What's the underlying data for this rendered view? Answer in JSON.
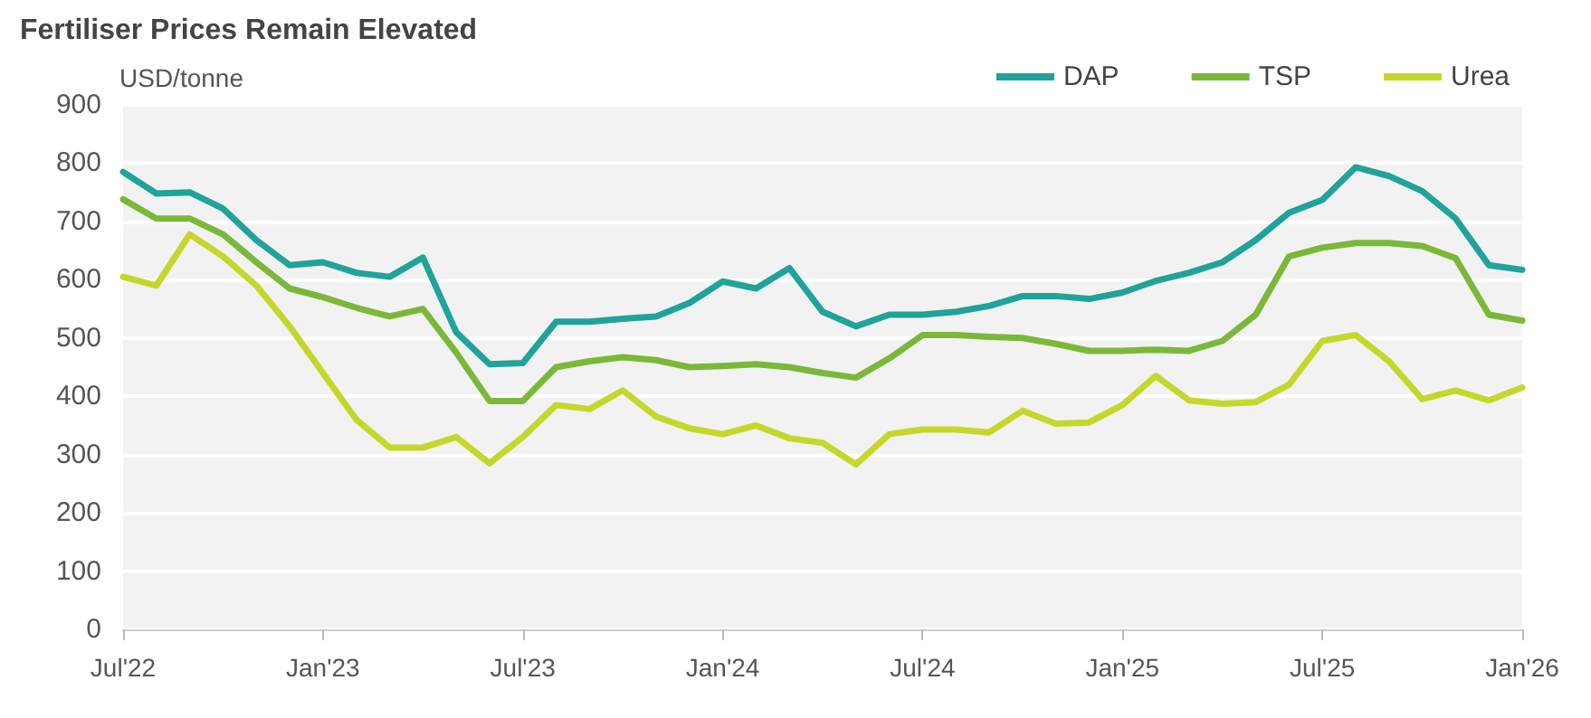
{
  "chart_data": {
    "type": "line",
    "title": "Fertiliser Prices Remain Elevated",
    "ylabel": "USD/tonne",
    "categories": [
      "Jul'22",
      null,
      null,
      null,
      null,
      null,
      "Jan'23",
      null,
      null,
      null,
      null,
      null,
      "Jul'23",
      null,
      null,
      null,
      null,
      null,
      "Jan'24",
      null,
      null,
      null,
      null,
      null,
      "Jul'24",
      null,
      null,
      null,
      null,
      null,
      "Jan'25",
      null,
      null,
      null,
      null,
      null,
      "Jul'25",
      null,
      null,
      null,
      null,
      null,
      "Jan'26"
    ],
    "series": [
      {
        "name": "DAP",
        "color": "#1fa39a",
        "values": [
          785,
          748,
          750,
          722,
          668,
          625,
          630,
          612,
          605,
          638,
          510,
          455,
          457,
          528,
          528,
          533,
          537,
          560,
          597,
          585,
          620,
          545,
          520,
          540,
          540,
          545,
          555,
          572,
          572,
          567,
          578,
          598,
          612,
          630,
          668,
          715,
          737,
          793,
          778,
          752,
          705,
          625,
          617
        ]
      },
      {
        "name": "TSP",
        "color": "#7ab839",
        "values": [
          738,
          705,
          705,
          678,
          630,
          585,
          570,
          552,
          537,
          550,
          475,
          392,
          392,
          450,
          460,
          467,
          462,
          450,
          452,
          455,
          450,
          440,
          432,
          465,
          505,
          505,
          502,
          500,
          490,
          478,
          478,
          480,
          478,
          495,
          540,
          640,
          655,
          663,
          663,
          658,
          637,
          540,
          530
        ]
      },
      {
        "name": "Urea",
        "color": "#c5d72a",
        "values": [
          605,
          590,
          678,
          640,
          590,
          520,
          440,
          360,
          312,
          312,
          330,
          285,
          330,
          385,
          378,
          410,
          365,
          345,
          335,
          350,
          328,
          320,
          283,
          335,
          343,
          343,
          338,
          375,
          353,
          355,
          385,
          435,
          393,
          387,
          390,
          420,
          495,
          505,
          460,
          395,
          410,
          393,
          415
        ]
      }
    ],
    "ylim": [
      0,
      900
    ],
    "yticks": [
      0,
      100,
      200,
      300,
      400,
      500,
      600,
      700,
      800,
      900
    ],
    "grid": "y",
    "legend": "top right",
    "marker": "none",
    "line_style": "solid"
  }
}
